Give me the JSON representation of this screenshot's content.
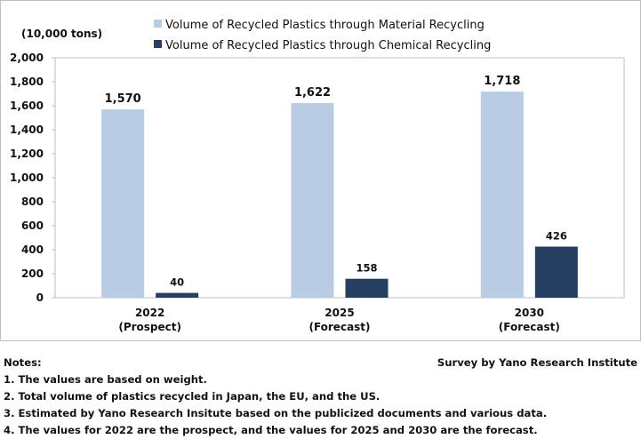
{
  "chart_data": {
    "type": "bar",
    "categories": [
      {
        "year": "2022",
        "label": "(Prospect)"
      },
      {
        "year": "2025",
        "label": "(Forecast)"
      },
      {
        "year": "2030",
        "label": "(Forecast)"
      }
    ],
    "series": [
      {
        "name": "Volume of Recycled Plastics through Material Recycling",
        "color": "#b8cce4",
        "values": [
          1570,
          1622,
          1718
        ],
        "labels": [
          "1,570",
          "1,622",
          "1,718"
        ]
      },
      {
        "name": "Volume of Recycled Plastics through Chemical Recycling",
        "color": "#243f60",
        "values": [
          40,
          158,
          426
        ],
        "labels": [
          "40",
          "158",
          "426"
        ]
      }
    ],
    "unit_label": "(10,000 tons)",
    "ylim": [
      0,
      2000
    ],
    "yticks": [
      0,
      200,
      400,
      600,
      800,
      1000,
      1200,
      1400,
      1600,
      1800,
      2000
    ],
    "ytick_labels": [
      "0",
      "200",
      "400",
      "600",
      "800",
      "1,000",
      "1,200",
      "1,400",
      "1,600",
      "1,800",
      "2,000"
    ],
    "grid": false,
    "legend_position": "top-right"
  },
  "notes": {
    "heading": "Notes:",
    "source": "Survey by Yano Research Institute",
    "items": [
      "1. The values are based on weight.",
      "2. Total volume of plastics recycled in Japan, the EU, and the US.",
      "3. Estimated by Yano Research Insitute based on the publicized documents and various data.",
      "4. The values for 2022 are the prospect, and the values for 2025 and 2030 are the forecast."
    ]
  }
}
